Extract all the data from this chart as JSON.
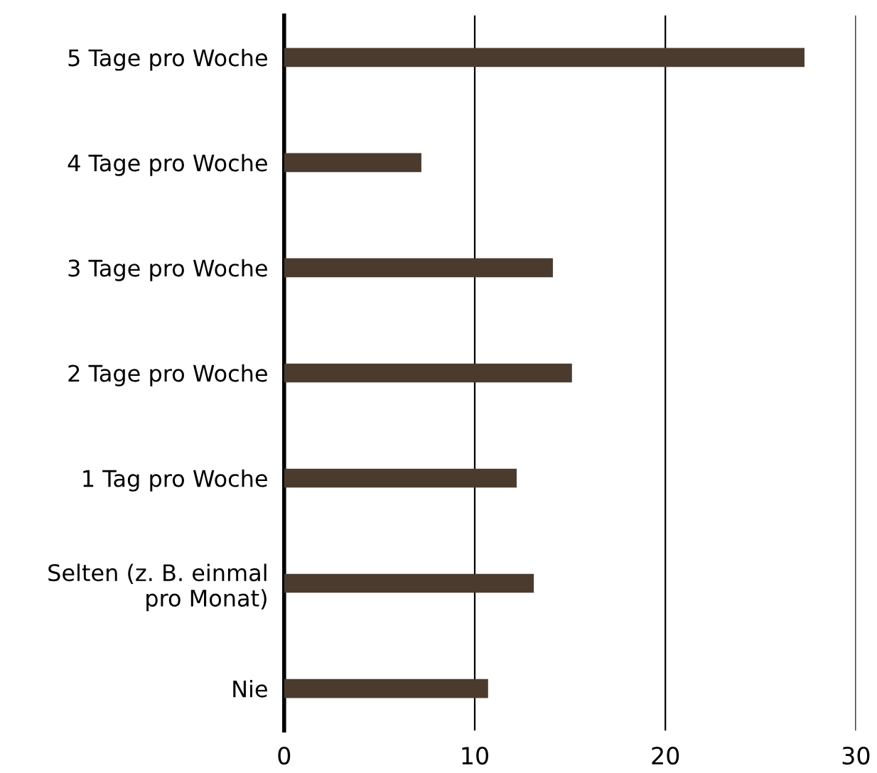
{
  "chart_data": {
    "type": "bar",
    "orientation": "horizontal",
    "categories": [
      "5 Tage pro Woche",
      "4 Tage pro Woche",
      "3 Tage pro Woche",
      "2 Tage pro Woche",
      "1 Tag pro Woche",
      "Selten (z. B. einmal\npro Monat)",
      "Nie"
    ],
    "values": [
      27.3,
      7.2,
      14.1,
      15.1,
      12.2,
      13.1,
      10.7
    ],
    "color": "#4b3b2f",
    "xlim": [
      0,
      30
    ],
    "xticks": [
      0,
      10,
      20,
      30
    ],
    "grid": "x",
    "legend": false
  }
}
